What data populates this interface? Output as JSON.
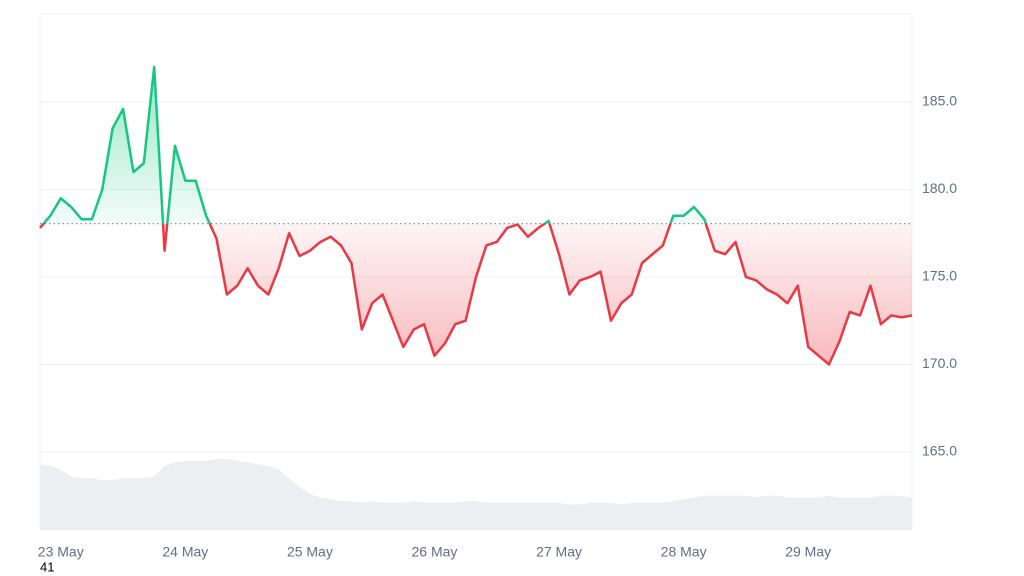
{
  "chart_data": {
    "type": "line",
    "categories": [
      null,
      null,
      "23 May",
      null,
      null,
      null,
      null,
      null,
      null,
      null,
      null,
      null,
      null,
      null,
      "24 May",
      null,
      null,
      null,
      null,
      null,
      null,
      null,
      null,
      null,
      null,
      null,
      "25 May",
      null,
      null,
      null,
      null,
      null,
      null,
      null,
      null,
      null,
      null,
      null,
      "26 May",
      null,
      null,
      null,
      null,
      null,
      null,
      null,
      null,
      null,
      null,
      null,
      "27 May",
      null,
      null,
      null,
      null,
      null,
      null,
      null,
      null,
      null,
      null,
      null,
      "28 May",
      null,
      null,
      null,
      null,
      null,
      null,
      null,
      null,
      null,
      null,
      null,
      "29 May",
      null,
      null,
      null,
      null,
      null,
      null,
      null,
      null,
      null,
      null
    ],
    "values": [
      177.8,
      178.5,
      179.5,
      179,
      178.3,
      178.3,
      180,
      183.5,
      184.6,
      181,
      181.5,
      187,
      176.5,
      182.5,
      180.5,
      180.5,
      178.5,
      177.2,
      174,
      174.5,
      175.5,
      174.5,
      174,
      175.5,
      177.5,
      176.2,
      176.5,
      177,
      177.3,
      176.8,
      175.8,
      172,
      173.5,
      174,
      172.5,
      171,
      172,
      172.3,
      170.5,
      171.2,
      172.3,
      172.5,
      175,
      176.8,
      177,
      177.8,
      178,
      177.3,
      177.8,
      178.2,
      176.3,
      174,
      174.8,
      175,
      175.3,
      172.5,
      173.5,
      174,
      175.8,
      176.3,
      176.8,
      178.5,
      178.5,
      179,
      178.3,
      176.5,
      176.3,
      177,
      175,
      174.8,
      174.3,
      174,
      173.5,
      174.5,
      171,
      170.5,
      170,
      171.3,
      173,
      172.8,
      174.5,
      172.3,
      172.8,
      172.7,
      172.8
    ],
    "baseline": 178.05,
    "up_color": "#16c784",
    "down_color": "#ea3943",
    "volume": {
      "color": "#eceef1",
      "values": [
        164.3,
        164.2,
        164,
        163.6,
        163.5,
        163.5,
        163.4,
        163.4,
        163.5,
        163.5,
        163.5,
        163.6,
        164.2,
        164.4,
        164.5,
        164.5,
        164.5,
        164.6,
        164.6,
        164.5,
        164.4,
        164.3,
        164.2,
        164,
        163.5,
        163,
        162.6,
        162.4,
        162.3,
        162.2,
        162.2,
        162.1,
        162.2,
        162.1,
        162.1,
        162.1,
        162.2,
        162.1,
        162.1,
        162.1,
        162.1,
        162.2,
        162.2,
        162.1,
        162.1,
        162.1,
        162.1,
        162.1,
        162.1,
        162.1,
        162.1,
        162,
        162,
        162.1,
        162.1,
        162.1,
        162,
        162.1,
        162.1,
        162.1,
        162.1,
        162.2,
        162.3,
        162.4,
        162.5,
        162.5,
        162.5,
        162.5,
        162.5,
        162.4,
        162.5,
        162.5,
        162.4,
        162.4,
        162.4,
        162.4,
        162.5,
        162.4,
        162.4,
        162.4,
        162.4,
        162.5,
        162.5,
        162.5,
        162.4
      ]
    },
    "ylim": [
      160.54,
      190.03
    ],
    "yticks": [
      {
        "value": 165,
        "label": "165.0"
      },
      {
        "value": 170,
        "label": "170.0"
      },
      {
        "value": 175,
        "label": "175.0"
      },
      {
        "value": 180,
        "label": "180.0"
      },
      {
        "value": 185,
        "label": "185.0"
      }
    ],
    "grid": true,
    "annotation": "41"
  }
}
